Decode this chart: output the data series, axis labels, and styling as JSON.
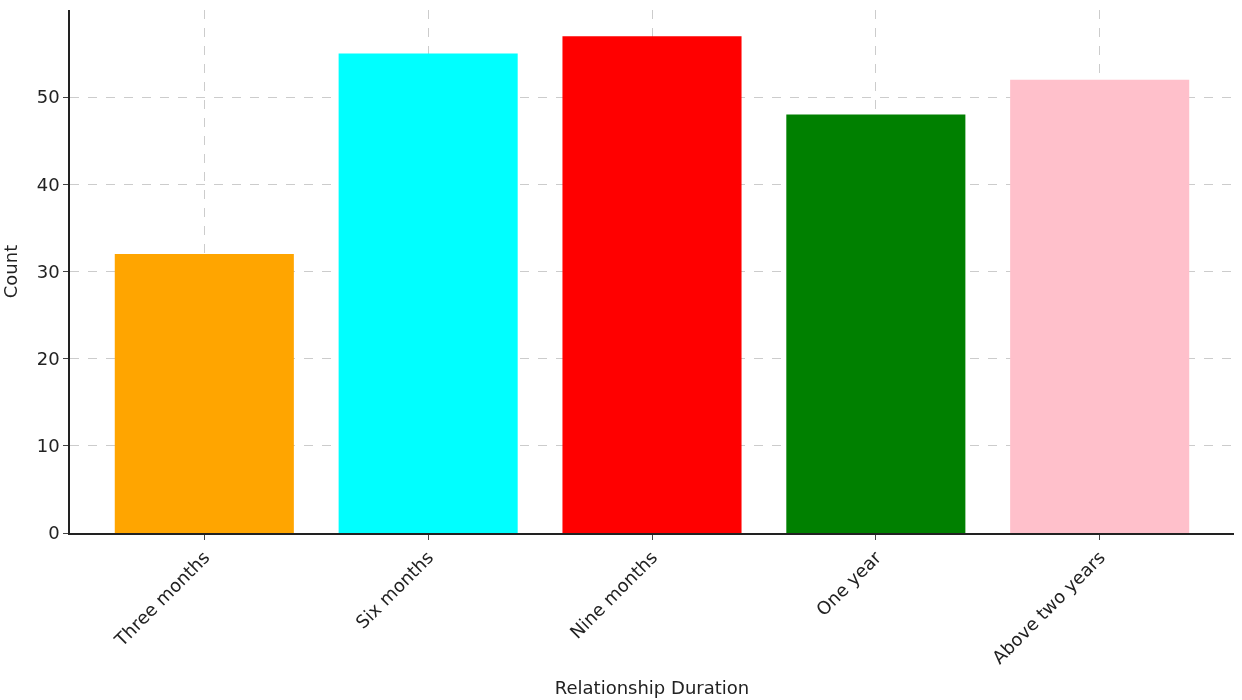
{
  "chart_data": {
    "type": "bar",
    "xlabel": "Relationship Duration",
    "ylabel": "Count",
    "categories": [
      "Three months",
      "Six months",
      "Nine months",
      "One year",
      "Above two years"
    ],
    "values": [
      32,
      55,
      57,
      48,
      52
    ],
    "colors": [
      "#ffa500",
      "#00ffff",
      "#ff0000",
      "#008000",
      "#ffc0cb"
    ],
    "ylim": [
      0,
      60
    ],
    "yticks": [
      0,
      10,
      20,
      30,
      40,
      50
    ],
    "grid": true
  }
}
